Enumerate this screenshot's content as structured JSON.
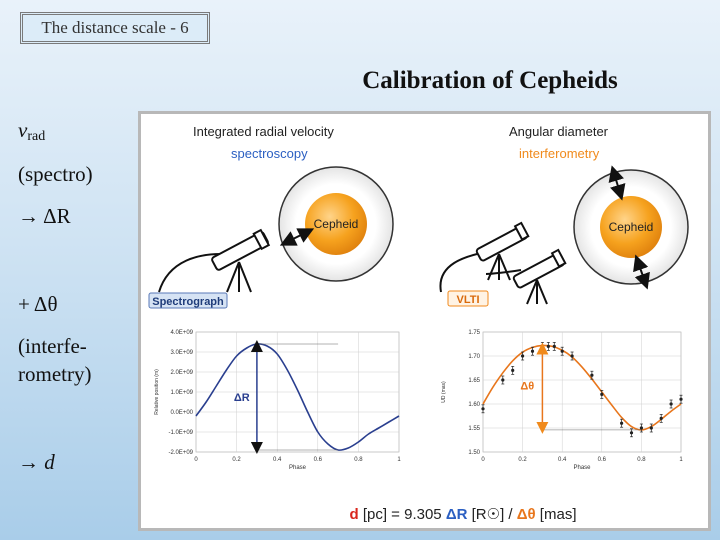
{
  "slide_tag": "The distance scale - 6",
  "title": "Calibration of Cepheids",
  "left_notes": {
    "vrad_v": "v",
    "vrad_sub": "rad",
    "spectro": "(spectro)",
    "arrow_dr": "→ ΔR",
    "plus_dtheta": "+ Δθ",
    "interf_1": "(interfe-",
    "interf_2": "rometry)",
    "arrow_d": "→ d"
  },
  "left_panel": {
    "heading": "Integrated radial velocity",
    "subheading": "spectroscopy",
    "star_label": "Cepheid",
    "instrument": "Spectrograph"
  },
  "right_panel": {
    "heading": "Angular diameter",
    "subheading": "interferometry",
    "star_label": "Cepheid",
    "instrument": "VLTI"
  },
  "formula": {
    "d": "d",
    "pc": " [pc] = 9.305 ",
    "dR": "ΔR",
    "rsun": " [R",
    "sun_sym": "☉",
    "rbr": "] / ",
    "dth": "Δθ",
    "mas": " [mas]"
  },
  "colors": {
    "accent_blue": "#2b5fc2",
    "accent_orange": "#f08a1c",
    "curve_blue": "#2a3f8f",
    "curve_orange": "#e8761c",
    "formula_red": "#d9261c",
    "star_fill": "#f6a21e"
  },
  "chart_data": [
    {
      "type": "line",
      "name": "radial-velocity-curve",
      "xlabel": "Phase",
      "ylabel": "Relative position (m)",
      "x_ticks": [
        "0",
        "0.2",
        "0.4",
        "0.6",
        "0.8",
        "1"
      ],
      "y_ticks": [
        "4.0E+09",
        "3.0E+09",
        "2.0E+09",
        "1.0E+09",
        "0.0E+00",
        "-1.0E+09",
        "-2.0E+09"
      ],
      "xlim": [
        0,
        1
      ],
      "ylim": [
        -2000000000.0,
        4000000000.0
      ],
      "x": [
        0,
        0.05,
        0.1,
        0.15,
        0.2,
        0.25,
        0.3,
        0.35,
        0.4,
        0.45,
        0.5,
        0.55,
        0.6,
        0.65,
        0.7,
        0.75,
        0.8,
        0.85,
        0.9,
        0.95,
        1.0
      ],
      "y": [
        -200000000.0,
        500000000.0,
        1300000000.0,
        2100000000.0,
        2800000000.0,
        3200000000.0,
        3400000000.0,
        3300000000.0,
        2900000000.0,
        2100000000.0,
        1100000000.0,
        0.0,
        -1000000000.0,
        -1600000000.0,
        -1900000000.0,
        -1800000000.0,
        -1500000000.0,
        -1100000000.0,
        -800000000.0,
        -500000000.0,
        -200000000.0
      ],
      "annotation": "ΔR",
      "grid": true
    },
    {
      "type": "scatter",
      "name": "angular-diameter-curve",
      "xlabel": "Phase",
      "ylabel": "UD (mas)",
      "x_ticks": [
        "0",
        "0.2",
        "0.4",
        "0.6",
        "0.8",
        "1"
      ],
      "y_ticks": [
        "1.75",
        "1.70",
        "1.65",
        "1.60",
        "1.55",
        "1.50"
      ],
      "xlim": [
        0,
        1
      ],
      "ylim": [
        1.5,
        1.75
      ],
      "points_x": [
        0.0,
        0.1,
        0.15,
        0.2,
        0.25,
        0.3,
        0.33,
        0.36,
        0.4,
        0.45,
        0.55,
        0.6,
        0.7,
        0.75,
        0.8,
        0.85,
        0.9,
        0.95,
        1.0
      ],
      "points_y": [
        1.59,
        1.65,
        1.67,
        1.7,
        1.71,
        1.72,
        1.72,
        1.72,
        1.71,
        1.7,
        1.66,
        1.62,
        1.56,
        1.54,
        1.55,
        1.55,
        1.57,
        1.6,
        1.61
      ],
      "curve_x": [
        0,
        0.05,
        0.1,
        0.15,
        0.2,
        0.25,
        0.3,
        0.35,
        0.4,
        0.45,
        0.5,
        0.55,
        0.6,
        0.65,
        0.7,
        0.75,
        0.8,
        0.85,
        0.9,
        0.95,
        1.0
      ],
      "curve_y": [
        1.6,
        1.635,
        1.665,
        1.69,
        1.708,
        1.718,
        1.722,
        1.72,
        1.712,
        1.698,
        1.677,
        1.652,
        1.625,
        1.598,
        1.572,
        1.553,
        1.546,
        1.553,
        1.568,
        1.585,
        1.6
      ],
      "annotation": "Δθ",
      "grid": true
    }
  ]
}
